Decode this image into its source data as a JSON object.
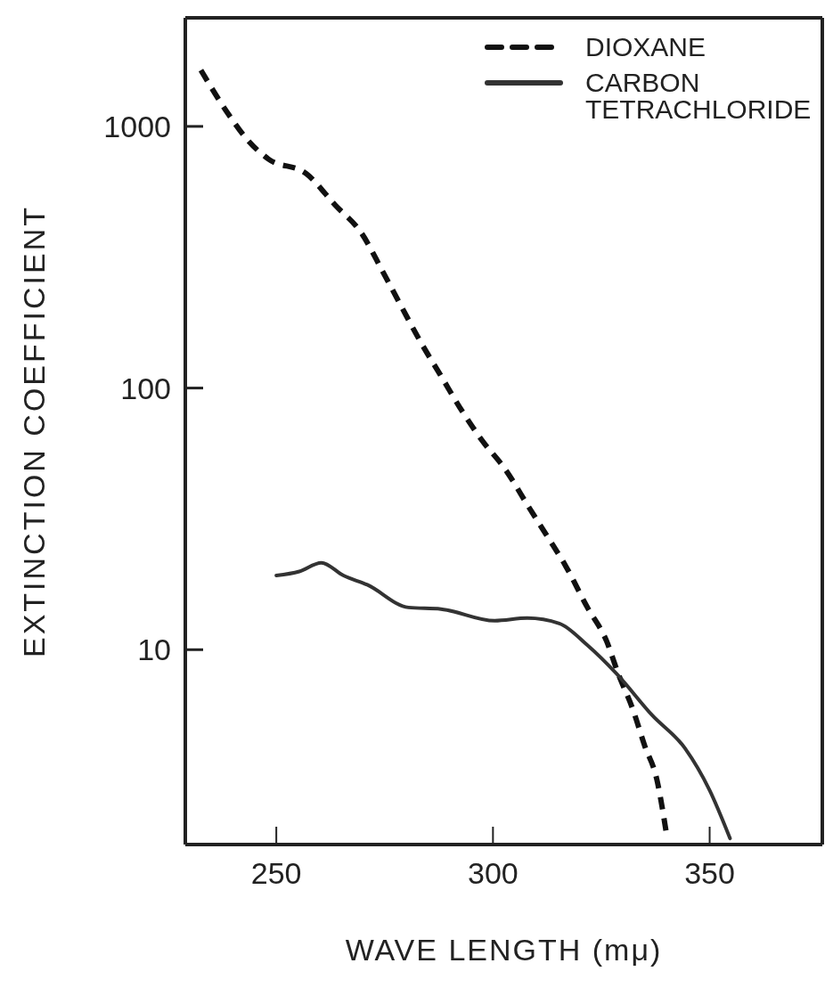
{
  "chart_data": {
    "type": "line",
    "xlabel": "WAVE LENGTH (mμ)",
    "ylabel": "EXTINCTION COEFFICIENT",
    "log": "y",
    "xlim": [
      229,
      376
    ],
    "xticks": [
      250,
      300,
      350
    ],
    "ylim": [
      1.8,
      2600
    ],
    "yticks": [
      10,
      100,
      1000
    ],
    "legend": "top right",
    "marker": "none",
    "series": [
      {
        "name": "DIOXANE",
        "color": "#111111",
        "line_style": "dashed",
        "x": [
          232.6,
          239,
          243.3,
          248.2,
          256.9,
          263.6,
          269.7,
          274.5,
          279.2,
          283.3,
          287.9,
          293,
          297.5,
          302.8,
          308.3,
          312.6,
          316.7,
          321.8,
          326.2,
          328.9,
          332.3,
          335,
          337.8,
          340.2
        ],
        "values": [
          1640,
          1110,
          890,
          750,
          660,
          500,
          390,
          280,
          200,
          150,
          112,
          81,
          63,
          49,
          35,
          27,
          21,
          14.5,
          10.8,
          8.1,
          5.9,
          4.3,
          3.2,
          1.9
        ]
      },
      {
        "name": "CARBON TETRACHLORIDE",
        "color": "#333333",
        "line_style": "solid",
        "x": [
          250,
          255.3,
          260.4,
          265.5,
          271,
          280.5,
          288,
          300.4,
          307.9,
          315.3,
          321.8,
          328.5,
          336.8,
          344.3,
          350,
          354.7
        ],
        "values": [
          19.2,
          19.9,
          21.5,
          19.2,
          17.7,
          14.5,
          14.3,
          12.9,
          13.2,
          12.6,
          10.4,
          8.1,
          5.6,
          4.2,
          2.9,
          1.9
        ]
      }
    ]
  }
}
